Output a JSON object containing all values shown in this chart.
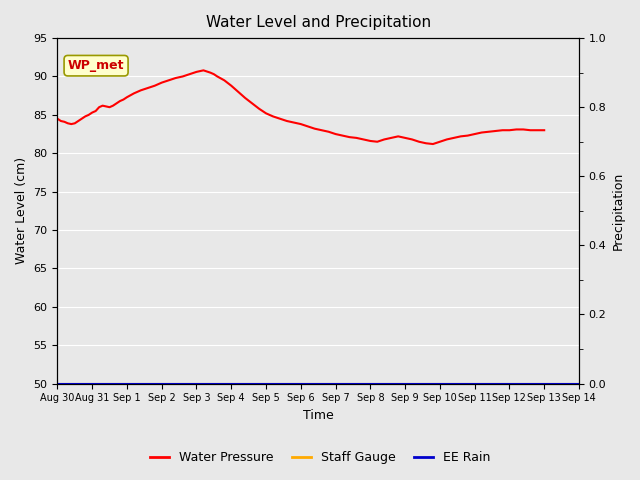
{
  "title": "Water Level and Precipitation",
  "xlabel": "Time",
  "ylabel_left": "Water Level (cm)",
  "ylabel_right": "Precipitation",
  "ylim_left": [
    50,
    95
  ],
  "ylim_right": [
    0.0,
    1.0
  ],
  "yticks_left": [
    50,
    55,
    60,
    65,
    70,
    75,
    80,
    85,
    90,
    95
  ],
  "yticks_right": [
    0.0,
    0.2,
    0.4,
    0.6,
    0.8,
    1.0
  ],
  "background_color": "#e8e8e8",
  "wp_met_label": "WP_met",
  "wp_met_box_color": "#ffffcc",
  "wp_met_text_color": "#cc0000",
  "wp_met_edge_color": "#999900",
  "legend_labels": [
    "Water Pressure",
    "Staff Gauge",
    "EE Rain"
  ],
  "legend_colors": [
    "#ff0000",
    "#ffaa00",
    "#0000cc"
  ],
  "water_pressure_color": "#ff0000",
  "staff_gauge_color": "#ffaa00",
  "ee_rain_color": "#0000cc",
  "x_tick_positions": [
    0,
    1,
    2,
    3,
    4,
    5,
    6,
    7,
    8,
    9,
    10,
    11,
    12,
    13,
    14,
    15
  ],
  "x_labels": [
    "Aug 30",
    "Aug 31",
    "Sep 1",
    "Sep 2",
    "Sep 3",
    "Sep 4",
    "Sep 5",
    "Sep 6",
    "Sep 7",
    "Sep 8",
    "Sep 9",
    "Sep 10",
    "Sep 11",
    "Sep 12",
    "Sep 13",
    "Sep 14"
  ],
  "xlim": [
    0,
    15
  ],
  "water_pressure_x": [
    0.0,
    0.1,
    0.2,
    0.3,
    0.4,
    0.5,
    0.6,
    0.7,
    0.8,
    0.9,
    1.0,
    1.1,
    1.2,
    1.3,
    1.4,
    1.5,
    1.6,
    1.7,
    1.8,
    1.9,
    2.0,
    2.2,
    2.4,
    2.6,
    2.8,
    3.0,
    3.2,
    3.4,
    3.6,
    3.8,
    4.0,
    4.2,
    4.4,
    4.5,
    4.6,
    4.8,
    5.0,
    5.2,
    5.4,
    5.6,
    5.8,
    6.0,
    6.2,
    6.4,
    6.6,
    6.8,
    7.0,
    7.2,
    7.4,
    7.6,
    7.8,
    8.0,
    8.2,
    8.4,
    8.6,
    8.8,
    9.0,
    9.2,
    9.4,
    9.6,
    9.8,
    10.0,
    10.2,
    10.4,
    10.6,
    10.8,
    11.0,
    11.2,
    11.4,
    11.6,
    11.8,
    12.0,
    12.2,
    12.4,
    12.6,
    12.8,
    13.0,
    13.2,
    13.4,
    13.6,
    13.8,
    14.0
  ],
  "water_pressure_y": [
    84.5,
    84.2,
    84.1,
    83.9,
    83.8,
    83.9,
    84.2,
    84.5,
    84.8,
    85.0,
    85.3,
    85.5,
    86.0,
    86.2,
    86.1,
    86.0,
    86.2,
    86.5,
    86.8,
    87.0,
    87.3,
    87.8,
    88.2,
    88.5,
    88.8,
    89.2,
    89.5,
    89.8,
    90.0,
    90.3,
    90.6,
    90.8,
    90.5,
    90.3,
    90.0,
    89.5,
    88.8,
    88.0,
    87.2,
    86.5,
    85.8,
    85.2,
    84.8,
    84.5,
    84.2,
    84.0,
    83.8,
    83.5,
    83.2,
    83.0,
    82.8,
    82.5,
    82.3,
    82.1,
    82.0,
    81.8,
    81.6,
    81.5,
    81.8,
    82.0,
    82.2,
    82.0,
    81.8,
    81.5,
    81.3,
    81.2,
    81.5,
    81.8,
    82.0,
    82.2,
    82.3,
    82.5,
    82.7,
    82.8,
    82.9,
    83.0,
    83.0,
    83.1,
    83.1,
    83.0,
    83.0,
    83.0
  ],
  "staff_gauge_y": 50.0,
  "ee_rain_y": 50.0
}
